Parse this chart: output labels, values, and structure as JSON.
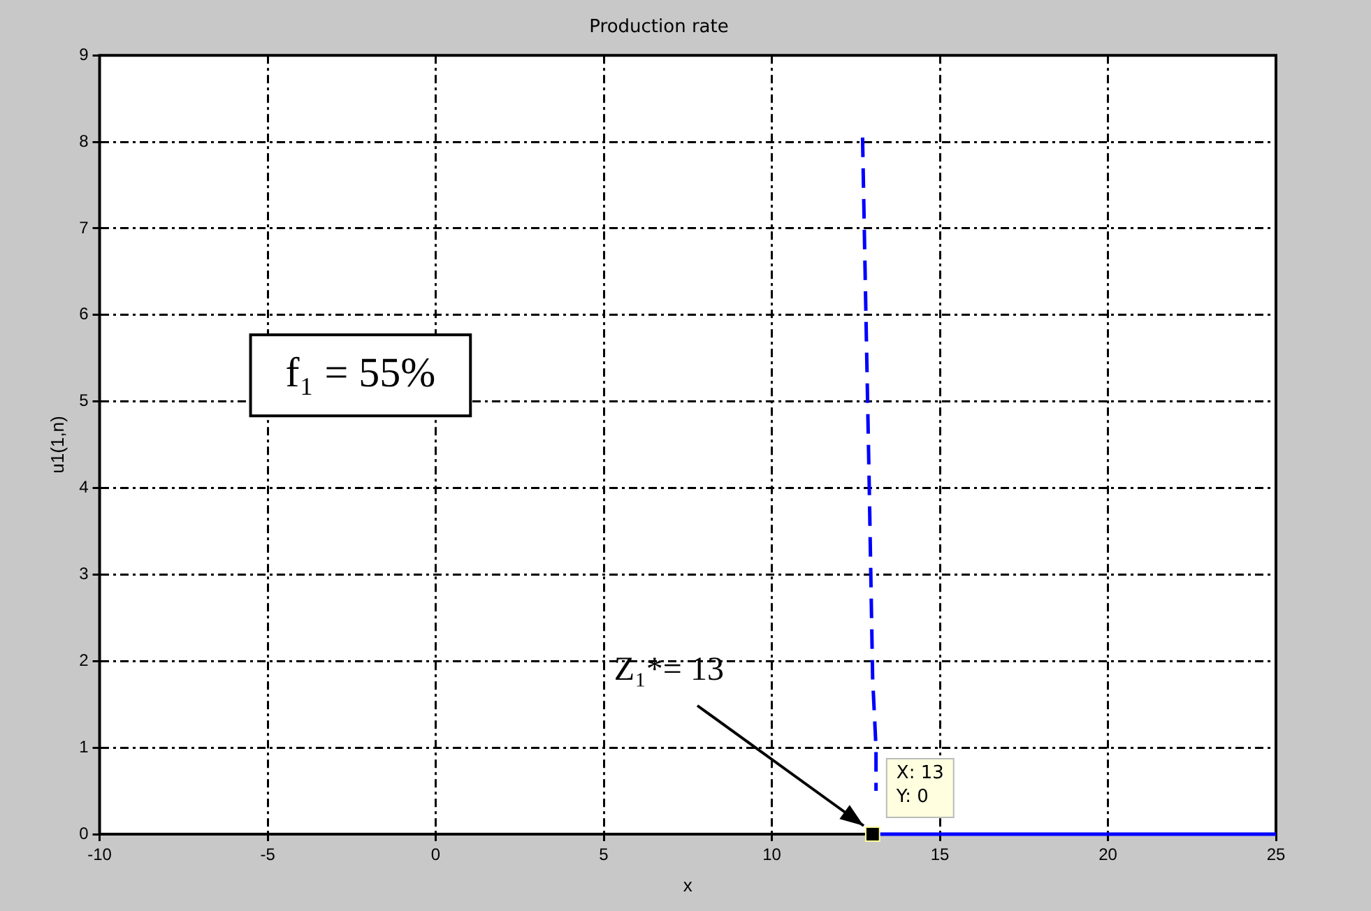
{
  "chart_data": {
    "type": "line",
    "title": "Production rate",
    "xlabel": "x",
    "ylabel": "u1(1,n)",
    "xlim": [
      -10,
      25
    ],
    "xticks": [
      -10,
      -5,
      0,
      5,
      10,
      15,
      20,
      25
    ],
    "ylim": [
      0,
      9
    ],
    "yticks": [
      0,
      1,
      2,
      3,
      4,
      5,
      6,
      7,
      8,
      9
    ],
    "grid": true,
    "legend": false,
    "series": [
      {
        "color": "#0000ff",
        "line_style": "dashed",
        "marker": "none",
        "x": [
          12.7,
          12.8,
          12.9,
          13.0,
          13.1,
          13.1
        ],
        "values": [
          8.05,
          6.0,
          4.0,
          1.8,
          1.0,
          0.5
        ]
      },
      {
        "color": "#0000ff",
        "line_style": "solid",
        "marker": "none",
        "x": [
          13,
          25
        ],
        "values": [
          0,
          0
        ]
      },
      {
        "type": "scatter",
        "color": "#000000",
        "marker": "square",
        "x": [
          13
        ],
        "values": [
          0
        ]
      }
    ],
    "annotations": [
      "f₁ = 55%",
      {
        "text": "Z₁*= 13",
        "x": 13,
        "y": 0
      },
      {
        "text": "X: 13\nY: 0",
        "x": 13,
        "y": 0
      }
    ]
  }
}
